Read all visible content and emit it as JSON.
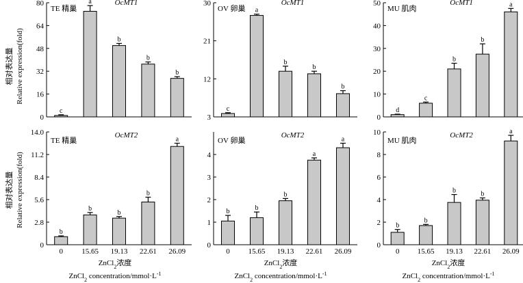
{
  "figure": {
    "ylabel_cn": "相对表达量",
    "ylabel_en": "Relative expression(fold)",
    "xlabel_cn": "ZnCl",
    "xlabel_cn_sub": "2",
    "xlabel_cn_rest": "浓度",
    "xlabel_en": "ZnCl",
    "xlabel_en_sub": "2",
    "xlabel_en_rest": " concentration/mmol·L",
    "xlabel_en_sup": "-1"
  },
  "chart_data": [
    {
      "type": "bar",
      "panel": "TE 精巢",
      "gene": "OcMT1",
      "categories": [
        "0",
        "15.65",
        "19.13",
        "22.61",
        "26.09"
      ],
      "values": [
        1,
        74,
        50,
        37,
        27
      ],
      "errors": [
        0.5,
        4,
        1.5,
        1.5,
        1.2
      ],
      "sig": [
        "c",
        "a",
        "b",
        "b",
        "b"
      ],
      "yticks": [
        "0",
        "16",
        "32",
        "48",
        "64",
        "80"
      ],
      "ylim": [
        0,
        80
      ],
      "show_xticks": false
    },
    {
      "type": "bar",
      "panel": "OV 卵巢",
      "gene": "OcMT1",
      "categories": [
        "0",
        "15.65",
        "19.13",
        "22.61",
        "26.09"
      ],
      "values": [
        3.8,
        27,
        13.8,
        13.2,
        8.5
      ],
      "errors": [
        0.2,
        0.3,
        1.2,
        0.6,
        0.7
      ],
      "sig": [
        "c",
        "a",
        "b",
        "b",
        "b"
      ],
      "yticks": [
        "3",
        "12",
        "21",
        "30"
      ],
      "ylim": [
        3,
        30
      ],
      "show_xticks": false
    },
    {
      "type": "bar",
      "panel": "MU 肌肉",
      "gene": "OcMT1",
      "categories": [
        "0",
        "15.65",
        "19.13",
        "22.61",
        "26.09"
      ],
      "values": [
        1,
        6,
        21,
        27.5,
        46
      ],
      "errors": [
        0.2,
        0.5,
        2.5,
        4.5,
        1.5
      ],
      "sig": [
        "d",
        "c",
        "b",
        "b",
        "a"
      ],
      "yticks": [
        "0",
        "10",
        "20",
        "30",
        "40",
        "50"
      ],
      "ylim": [
        0,
        50
      ],
      "show_xticks": false
    },
    {
      "type": "bar",
      "panel": "TE 精巢",
      "gene": "OcMT2",
      "categories": [
        "0",
        "15.65",
        "19.13",
        "22.61",
        "26.09"
      ],
      "values": [
        1,
        3.7,
        3.3,
        5.3,
        12.2
      ],
      "errors": [
        0.1,
        0.3,
        0.2,
        0.6,
        0.4
      ],
      "sig": [
        "b",
        "b",
        "b",
        "b",
        "a"
      ],
      "yticks": [
        "0",
        "2.8",
        "5.6",
        "8.4",
        "11.2",
        "14.0"
      ],
      "ylim": [
        0,
        14
      ],
      "show_xticks": true
    },
    {
      "type": "bar",
      "panel": "OV 卵巢",
      "gene": "OcMT2",
      "categories": [
        "0",
        "15.65",
        "19.13",
        "22.61",
        "26.09"
      ],
      "values": [
        1.05,
        1.2,
        1.95,
        3.75,
        4.3
      ],
      "errors": [
        0.25,
        0.25,
        0.1,
        0.1,
        0.2
      ],
      "sig": [
        "b",
        "b",
        "b",
        "a",
        "a"
      ],
      "yticks": [
        "0",
        "1",
        "2",
        "3",
        "4"
      ],
      "ylim": [
        0,
        5
      ],
      "show_xticks": true
    },
    {
      "type": "bar",
      "panel": "MU 肌肉",
      "gene": "OcMT2",
      "categories": [
        "0",
        "15.65",
        "19.13",
        "22.61",
        "26.09"
      ],
      "values": [
        1.1,
        1.7,
        3.75,
        3.95,
        9.2
      ],
      "errors": [
        0.25,
        0.1,
        0.7,
        0.2,
        0.5
      ],
      "sig": [
        "b",
        "b",
        "b",
        "b",
        "a"
      ],
      "yticks": [
        "0",
        "2",
        "4",
        "6",
        "8",
        "10"
      ],
      "ylim": [
        0,
        10
      ],
      "show_xticks": true
    }
  ]
}
